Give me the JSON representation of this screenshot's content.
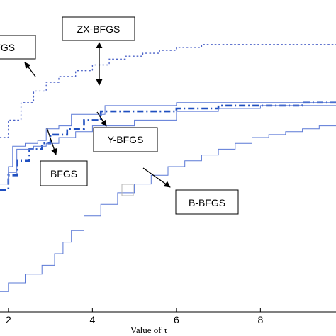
{
  "chart_data": {
    "type": "line",
    "xlabel": "Value of τ",
    "ylabel": "",
    "title": "",
    "x_ticks": [
      "2",
      "4",
      "6",
      "8"
    ],
    "xlim": [
      1.8,
      9.8
    ],
    "ylim": [
      0,
      1
    ],
    "grid": false,
    "series": [
      {
        "name": "ZX-BFGS",
        "style": "dotted",
        "color": "#4b62c8",
        "points": [
          [
            1.8,
            0.6
          ],
          [
            2.0,
            0.66
          ],
          [
            2.3,
            0.72
          ],
          [
            2.6,
            0.76
          ],
          [
            2.9,
            0.79
          ],
          [
            3.2,
            0.81
          ],
          [
            3.6,
            0.83
          ],
          [
            4.0,
            0.85
          ],
          [
            4.4,
            0.87
          ],
          [
            4.8,
            0.88
          ],
          [
            5.2,
            0.89
          ],
          [
            5.6,
            0.9
          ],
          [
            6.0,
            0.91
          ],
          [
            6.6,
            0.92
          ],
          [
            7.2,
            0.92
          ],
          [
            8.0,
            0.92
          ],
          [
            9.8,
            0.92
          ]
        ]
      },
      {
        "name": "Y-BFGS",
        "style": "dash-dot",
        "color": "#1f4fc0",
        "points": [
          [
            1.8,
            0.42
          ],
          [
            2.0,
            0.47
          ],
          [
            2.2,
            0.52
          ],
          [
            2.5,
            0.56
          ],
          [
            2.8,
            0.58
          ],
          [
            3.0,
            0.61
          ],
          [
            3.4,
            0.63
          ],
          [
            3.8,
            0.66
          ],
          [
            4.2,
            0.69
          ],
          [
            5.0,
            0.69
          ],
          [
            6.0,
            0.7
          ],
          [
            7.0,
            0.71
          ],
          [
            8.0,
            0.71
          ],
          [
            9.0,
            0.72
          ],
          [
            9.8,
            0.72
          ]
        ]
      },
      {
        "name": "BFGS",
        "style": "solid",
        "color": "#5a78d6",
        "points": [
          [
            1.8,
            0.45
          ],
          [
            2.0,
            0.5
          ],
          [
            2.1,
            0.57
          ],
          [
            2.4,
            0.58
          ],
          [
            2.7,
            0.59
          ],
          [
            2.9,
            0.63
          ],
          [
            3.2,
            0.64
          ],
          [
            3.5,
            0.68
          ],
          [
            3.9,
            0.68
          ],
          [
            4.3,
            0.71
          ],
          [
            5.0,
            0.71
          ],
          [
            6.0,
            0.72
          ],
          [
            7.0,
            0.72
          ],
          [
            8.0,
            0.72
          ],
          [
            9.8,
            0.72
          ]
        ]
      },
      {
        "name": "",
        "style": "solid",
        "color": "#5a78d6",
        "points": [
          [
            1.8,
            0.44
          ],
          [
            2.0,
            0.48
          ],
          [
            2.2,
            0.56
          ],
          [
            2.6,
            0.57
          ],
          [
            2.9,
            0.58
          ],
          [
            3.2,
            0.6
          ],
          [
            3.6,
            0.62
          ],
          [
            4.0,
            0.64
          ],
          [
            5.0,
            0.66
          ],
          [
            6.0,
            0.69
          ],
          [
            7.0,
            0.7
          ],
          [
            8.0,
            0.71
          ],
          [
            9.8,
            0.71
          ]
        ]
      },
      {
        "name": "B-BFGS",
        "style": "solid",
        "color": "#5a78d6",
        "points": [
          [
            1.8,
            0.07
          ],
          [
            2.0,
            0.1
          ],
          [
            2.4,
            0.13
          ],
          [
            2.8,
            0.16
          ],
          [
            3.1,
            0.2
          ],
          [
            3.3,
            0.24
          ],
          [
            3.5,
            0.28
          ],
          [
            3.8,
            0.33
          ],
          [
            4.2,
            0.37
          ],
          [
            4.6,
            0.41
          ],
          [
            5.0,
            0.44
          ],
          [
            5.4,
            0.47
          ],
          [
            5.8,
            0.5
          ],
          [
            6.2,
            0.52
          ],
          [
            6.6,
            0.54
          ],
          [
            7.0,
            0.56
          ],
          [
            7.4,
            0.58
          ],
          [
            7.8,
            0.6
          ],
          [
            8.2,
            0.61
          ],
          [
            8.6,
            0.62
          ],
          [
            9.0,
            0.63
          ],
          [
            9.4,
            0.64
          ],
          [
            9.8,
            0.64
          ]
        ]
      }
    ],
    "annotations": [
      {
        "text": "ZX-BFGS",
        "target": "ZX-BFGS"
      },
      {
        "text": "BFGS",
        "target": "BFGS"
      },
      {
        "text": "Y-BFGS",
        "target": "Y-BFGS"
      },
      {
        "text": "BFGS",
        "target": "BFGS"
      },
      {
        "text": "B-BFGS",
        "target": "B-BFGS"
      }
    ]
  }
}
